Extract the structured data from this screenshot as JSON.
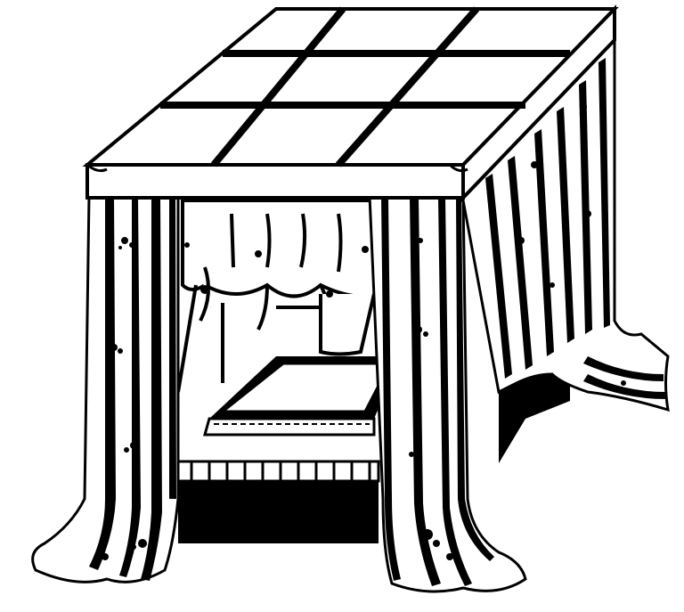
{
  "illustration": {
    "subject": "canopy-bed-line-art",
    "colors": {
      "ink": "#000000",
      "paper": "#ffffff"
    },
    "roof_grid": {
      "rows": 3,
      "cols": 3
    }
  }
}
